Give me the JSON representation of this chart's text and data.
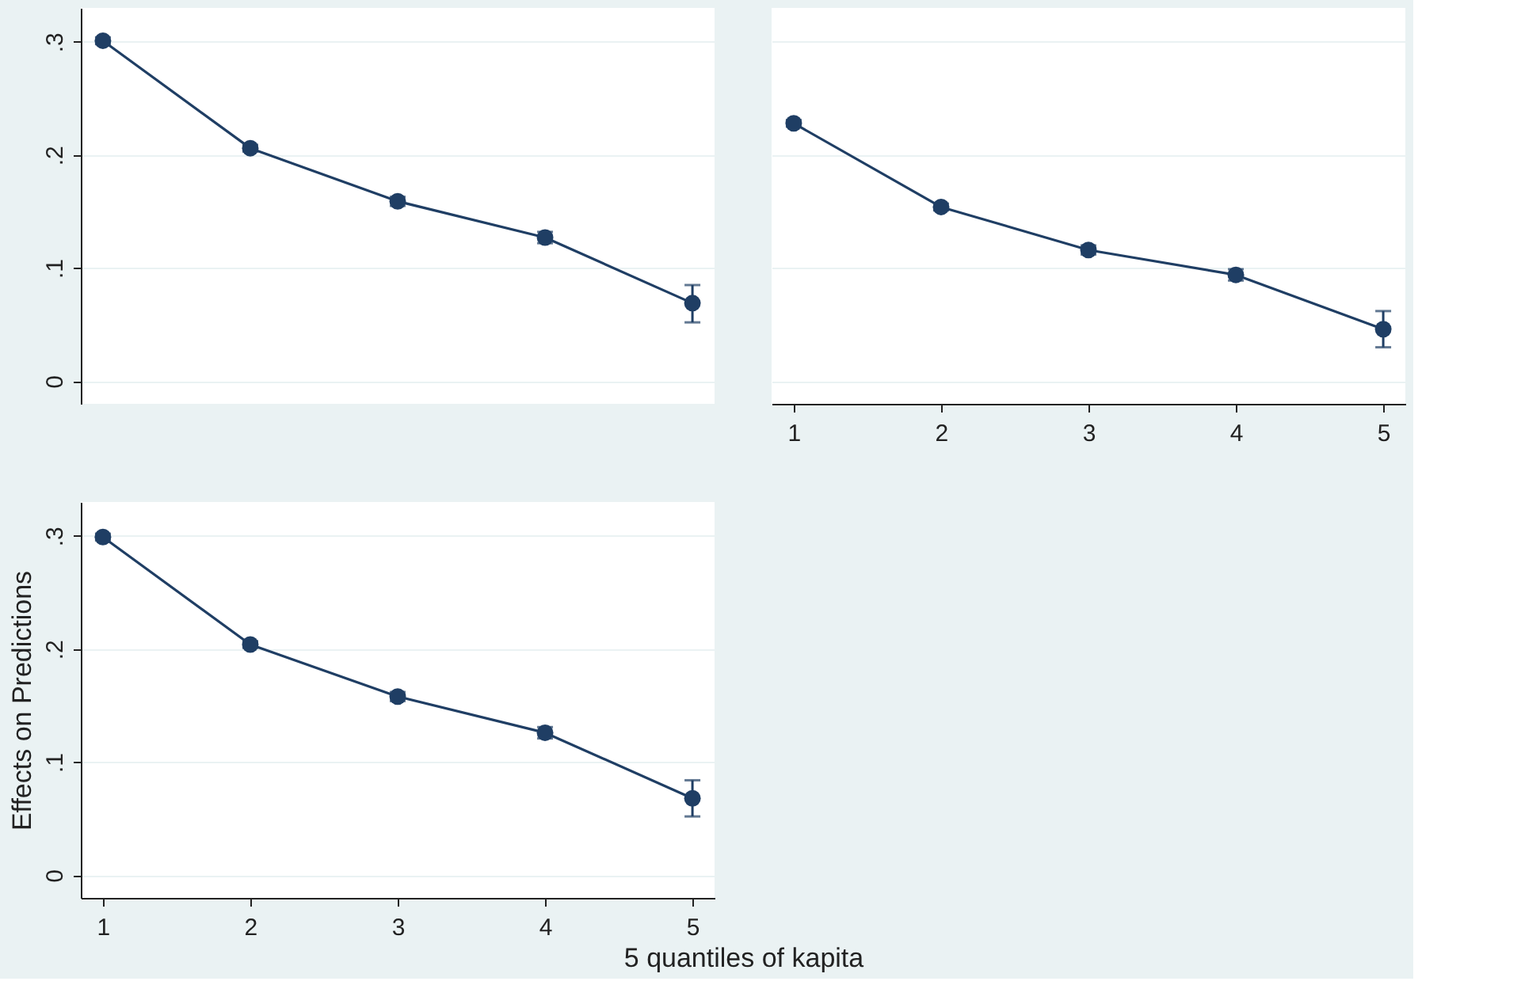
{
  "chart_data": [
    {
      "type": "line",
      "x": [
        1,
        2,
        3,
        4,
        5
      ],
      "xlim": [
        0.85,
        5.15
      ],
      "xticks": [
        1,
        2,
        3,
        4,
        5
      ],
      "ylim": [
        -0.02,
        0.33
      ],
      "yticks": [
        0,
        {
          "value": 0.1,
          "label": ".1"
        },
        {
          "value": 0.2,
          "label": ".2"
        },
        {
          "value": 0.3,
          "label": ".3"
        }
      ],
      "tick_labels": "y",
      "grid": "y",
      "marker": "circle",
      "line_style": "solid",
      "series": [
        {
          "color": "#1f3e64",
          "values": [
            0.301,
            0.206,
            0.159,
            0.127,
            0.069
          ],
          "errors": [
            0.003,
            0.003,
            0.004,
            0.005,
            [
              0.052,
              0.085
            ]
          ]
        }
      ]
    },
    {
      "type": "line",
      "x": [
        1,
        2,
        3,
        4,
        5
      ],
      "xlim": [
        0.85,
        5.15
      ],
      "xticks": [
        1,
        2,
        3,
        4,
        5
      ],
      "ylim": [
        -0.02,
        0.33
      ],
      "yticks": [
        0,
        0.1,
        0.2,
        0.3
      ],
      "tick_labels": "x",
      "grid": "y",
      "marker": "circle",
      "line_style": "solid",
      "series": [
        {
          "color": "#1f3e64",
          "values": [
            0.228,
            0.154,
            0.116,
            0.094,
            0.046
          ],
          "errors": [
            0.003,
            0.003,
            0.004,
            0.005,
            [
              0.03,
              0.062
            ]
          ]
        }
      ]
    },
    {
      "type": "line",
      "x": [
        1,
        2,
        3,
        4,
        5
      ],
      "xlim": [
        0.85,
        5.15
      ],
      "xticks": [
        1,
        2,
        3,
        4,
        5
      ],
      "ylim": [
        -0.02,
        0.33
      ],
      "yticks": [
        0,
        {
          "value": 0.1,
          "label": ".1"
        },
        {
          "value": 0.2,
          "label": ".2"
        },
        {
          "value": 0.3,
          "label": ".3"
        }
      ],
      "grid": "y",
      "marker": "circle",
      "line_style": "solid",
      "xlabel": "5 quantiles of kapita",
      "ylabel": "Effects on Predictions",
      "series": [
        {
          "color": "#1f3e64",
          "values": [
            0.299,
            0.204,
            0.158,
            0.126,
            0.068
          ],
          "errors": [
            0.003,
            0.003,
            0.004,
            0.005,
            [
              0.052,
              0.084
            ]
          ]
        }
      ]
    }
  ]
}
